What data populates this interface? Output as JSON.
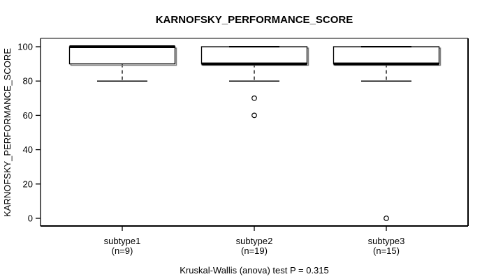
{
  "chart_data": {
    "type": "boxplot",
    "title": "KARNOFSKY_PERFORMANCE_SCORE",
    "ylabel": "KARNOFSKY_PERFORMANCE_SCORE",
    "annotation": "Kruskal-Wallis (anova) test P = 0.315",
    "ylim": [
      0,
      100
    ],
    "yticks": [
      0,
      20,
      40,
      60,
      80,
      100
    ],
    "grid": false,
    "groups": [
      {
        "label": "subtype1",
        "sublabel": "(n=9)",
        "n": 9,
        "q1": 90,
        "median": 100,
        "q3": 100,
        "whisker_low": 80,
        "whisker_high": 100,
        "outliers": []
      },
      {
        "label": "subtype2",
        "sublabel": "(n=19)",
        "n": 19,
        "q1": 90,
        "median": 90,
        "q3": 100,
        "whisker_low": 80,
        "whisker_high": 100,
        "outliers": [
          70,
          60
        ]
      },
      {
        "label": "subtype3",
        "sublabel": "(n=15)",
        "n": 15,
        "q1": 90,
        "median": 90,
        "q3": 100,
        "whisker_low": 80,
        "whisker_high": 100,
        "outliers": [
          0
        ]
      }
    ]
  },
  "colors": {
    "line": "#000000",
    "shadow": "#808080",
    "box_fill": "#ffffff",
    "background": "#ffffff"
  }
}
